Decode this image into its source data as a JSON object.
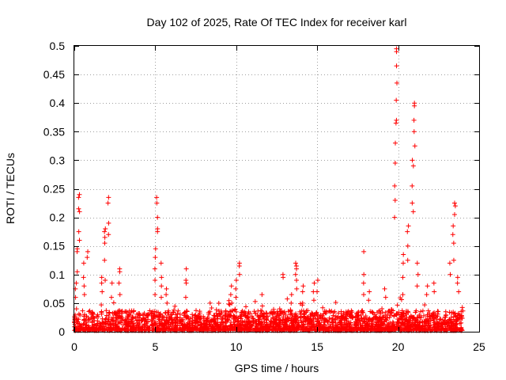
{
  "chart_data": {
    "type": "scatter",
    "title": "Day 102 of 2025, Rate Of TEC Index for receiver karl",
    "xlabel": "GPS time / hours",
    "ylabel": "ROTI / TECUs",
    "xlim": [
      0,
      25
    ],
    "ylim": [
      0,
      0.5
    ],
    "x_ticks": [
      0,
      5,
      10,
      15,
      20,
      25
    ],
    "y_ticks": [
      0,
      0.05,
      0.1,
      0.15,
      0.2,
      0.25,
      0.3,
      0.35,
      0.4,
      0.45,
      0.5
    ],
    "x_tick_labels": [
      "0",
      "5",
      "10",
      "15",
      "20",
      "25"
    ],
    "y_tick_labels": [
      "0",
      "0.05",
      "0.1",
      "0.15",
      "0.2",
      "0.25",
      "0.3",
      "0.35",
      "0.4",
      "0.45",
      "0.5"
    ],
    "grid": true,
    "marker": "+",
    "series": [
      {
        "name": "ROTI",
        "color": "#ff0000",
        "x_range": [
          0,
          24
        ],
        "base_level": 0.01,
        "background_points": 2600,
        "spikes": [
          {
            "x": 0.1,
            "values": [
              0.02,
              0.04,
              0.06,
              0.075,
              0.085
            ]
          },
          {
            "x": 0.2,
            "values": [
              0.105,
              0.14,
              0.145
            ]
          },
          {
            "x": 0.3,
            "values": [
              0.16,
              0.175,
              0.21,
              0.215,
              0.235,
              0.24
            ]
          },
          {
            "x": 0.6,
            "values": [
              0.065,
              0.08,
              0.095,
              0.12
            ]
          },
          {
            "x": 0.8,
            "values": [
              0.13,
              0.14
            ]
          },
          {
            "x": 1.7,
            "values": [
              0.07,
              0.085,
              0.095
            ]
          },
          {
            "x": 1.9,
            "values": [
              0.09,
              0.125,
              0.155,
              0.165,
              0.175,
              0.18
            ]
          },
          {
            "x": 2.1,
            "values": [
              0.17,
              0.19,
              0.225,
              0.235
            ]
          },
          {
            "x": 2.3,
            "values": [
              0.06,
              0.085
            ]
          },
          {
            "x": 2.8,
            "values": [
              0.065,
              0.085,
              0.105,
              0.11
            ]
          },
          {
            "x": 5.0,
            "values": [
              0.065,
              0.09,
              0.11,
              0.13,
              0.145
            ]
          },
          {
            "x": 5.1,
            "values": [
              0.175,
              0.18,
              0.2,
              0.225,
              0.235
            ]
          },
          {
            "x": 5.4,
            "values": [
              0.06,
              0.08,
              0.095,
              0.12
            ]
          },
          {
            "x": 5.7,
            "values": [
              0.05,
              0.065,
              0.075
            ]
          },
          {
            "x": 6.9,
            "values": [
              0.06,
              0.085,
              0.09,
              0.11
            ]
          },
          {
            "x": 8.4,
            "values": [
              0.035,
              0.05
            ]
          },
          {
            "x": 9.7,
            "values": [
              0.05,
              0.065,
              0.08
            ]
          },
          {
            "x": 10.0,
            "values": [
              0.06,
              0.075,
              0.09
            ]
          },
          {
            "x": 10.2,
            "values": [
              0.1,
              0.115,
              0.12
            ]
          },
          {
            "x": 11.6,
            "values": [
              0.045,
              0.065
            ]
          },
          {
            "x": 12.9,
            "values": [
              0.095,
              0.1
            ]
          },
          {
            "x": 13.4,
            "values": [
              0.05,
              0.065
            ]
          },
          {
            "x": 13.7,
            "values": [
              0.075,
              0.09,
              0.1,
              0.11,
              0.115,
              0.12
            ]
          },
          {
            "x": 14.1,
            "values": [
              0.05,
              0.07,
              0.08
            ]
          },
          {
            "x": 14.8,
            "values": [
              0.055,
              0.07,
              0.085
            ]
          },
          {
            "x": 15.0,
            "values": [
              0.07,
              0.09
            ]
          },
          {
            "x": 17.9,
            "values": [
              0.065,
              0.085,
              0.1,
              0.14
            ]
          },
          {
            "x": 18.2,
            "values": [
              0.055,
              0.07
            ]
          },
          {
            "x": 19.2,
            "values": [
              0.06,
              0.075
            ]
          },
          {
            "x": 19.8,
            "values": [
              0.2,
              0.23,
              0.255,
              0.295,
              0.33
            ]
          },
          {
            "x": 19.9,
            "values": [
              0.365,
              0.37,
              0.405,
              0.435,
              0.465,
              0.49,
              0.495
            ]
          },
          {
            "x": 20.3,
            "values": [
              0.065,
              0.095,
              0.12,
              0.135
            ]
          },
          {
            "x": 20.6,
            "values": [
              0.125,
              0.15,
              0.175,
              0.185
            ]
          },
          {
            "x": 20.9,
            "values": [
              0.21,
              0.225,
              0.255,
              0.29,
              0.3
            ]
          },
          {
            "x": 21.0,
            "values": [
              0.325,
              0.35,
              0.37,
              0.395,
              0.4
            ]
          },
          {
            "x": 21.2,
            "values": [
              0.08,
              0.1,
              0.12
            ]
          },
          {
            "x": 21.8,
            "values": [
              0.065,
              0.08
            ]
          },
          {
            "x": 22.2,
            "values": [
              0.07,
              0.085
            ]
          },
          {
            "x": 23.2,
            "values": [
              0.1,
              0.12
            ]
          },
          {
            "x": 23.4,
            "values": [
              0.125,
              0.155,
              0.17,
              0.185
            ]
          },
          {
            "x": 23.5,
            "values": [
              0.205,
              0.22,
              0.225
            ]
          },
          {
            "x": 23.7,
            "values": [
              0.07,
              0.085,
              0.095
            ]
          }
        ]
      }
    ]
  }
}
